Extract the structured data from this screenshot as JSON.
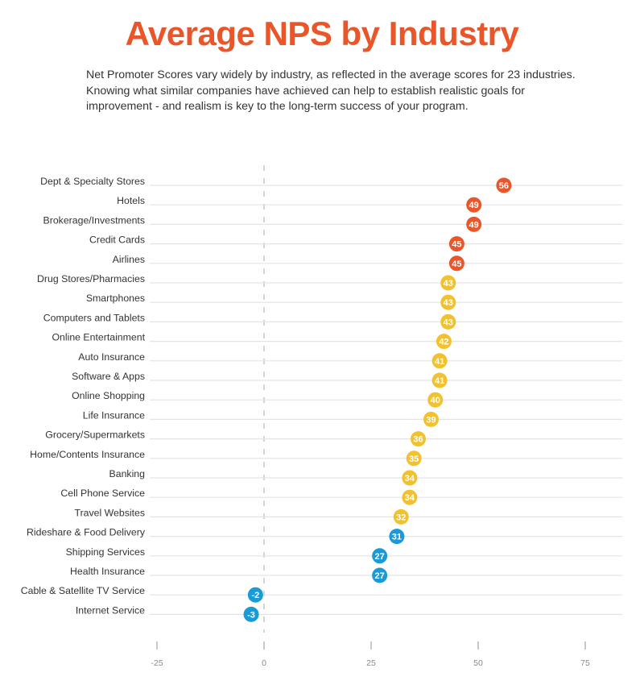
{
  "title": "Average NPS by Industry",
  "subtitle": "Net Promoter Scores vary widely by industry, as reflected in the average scores for 23 industries. Knowing what similar companies have achieved can help to establish realistic goals for improvement - and realism is key to the long-term success of your program.",
  "chart_data": {
    "type": "scatter",
    "orientation": "horizontal dot plot",
    "categories": [
      "Dept & Specialty Stores",
      "Hotels",
      "Brokerage/Investments",
      "Credit Cards",
      "Airlines",
      "Drug Stores/Pharmacies",
      "Smartphones",
      "Computers and Tablets",
      "Online Entertainment",
      "Auto Insurance",
      "Software & Apps",
      "Online Shopping",
      "Life Insurance",
      "Grocery/Supermarkets",
      "Home/Contents Insurance",
      "Banking",
      "Cell Phone Service",
      "Travel Websites",
      "Rideshare & Food Delivery",
      "Shipping Services",
      "Health Insurance",
      "Cable & Satellite TV Service",
      "Internet Service"
    ],
    "values": [
      56,
      49,
      49,
      45,
      45,
      43,
      43,
      43,
      42,
      41,
      41,
      40,
      39,
      36,
      35,
      34,
      34,
      32,
      31,
      27,
      27,
      -2,
      -3
    ],
    "xlim": [
      -25,
      80
    ],
    "xticks": [
      -25,
      0,
      25,
      50,
      75
    ],
    "xtick_labels": [
      "-25",
      "0",
      "25",
      "50",
      "75"
    ],
    "grid": "horizontal",
    "zero_line": "dashed",
    "data_labels": true,
    "colors": {
      "high": "#e8562a",
      "mid": "#f2c12e",
      "low": "#1a9ad6"
    },
    "color_groups": [
      "high",
      "high",
      "high",
      "high",
      "high",
      "mid",
      "mid",
      "mid",
      "mid",
      "mid",
      "mid",
      "mid",
      "mid",
      "mid",
      "mid",
      "mid",
      "mid",
      "mid",
      "low",
      "low",
      "low",
      "low",
      "low"
    ]
  }
}
